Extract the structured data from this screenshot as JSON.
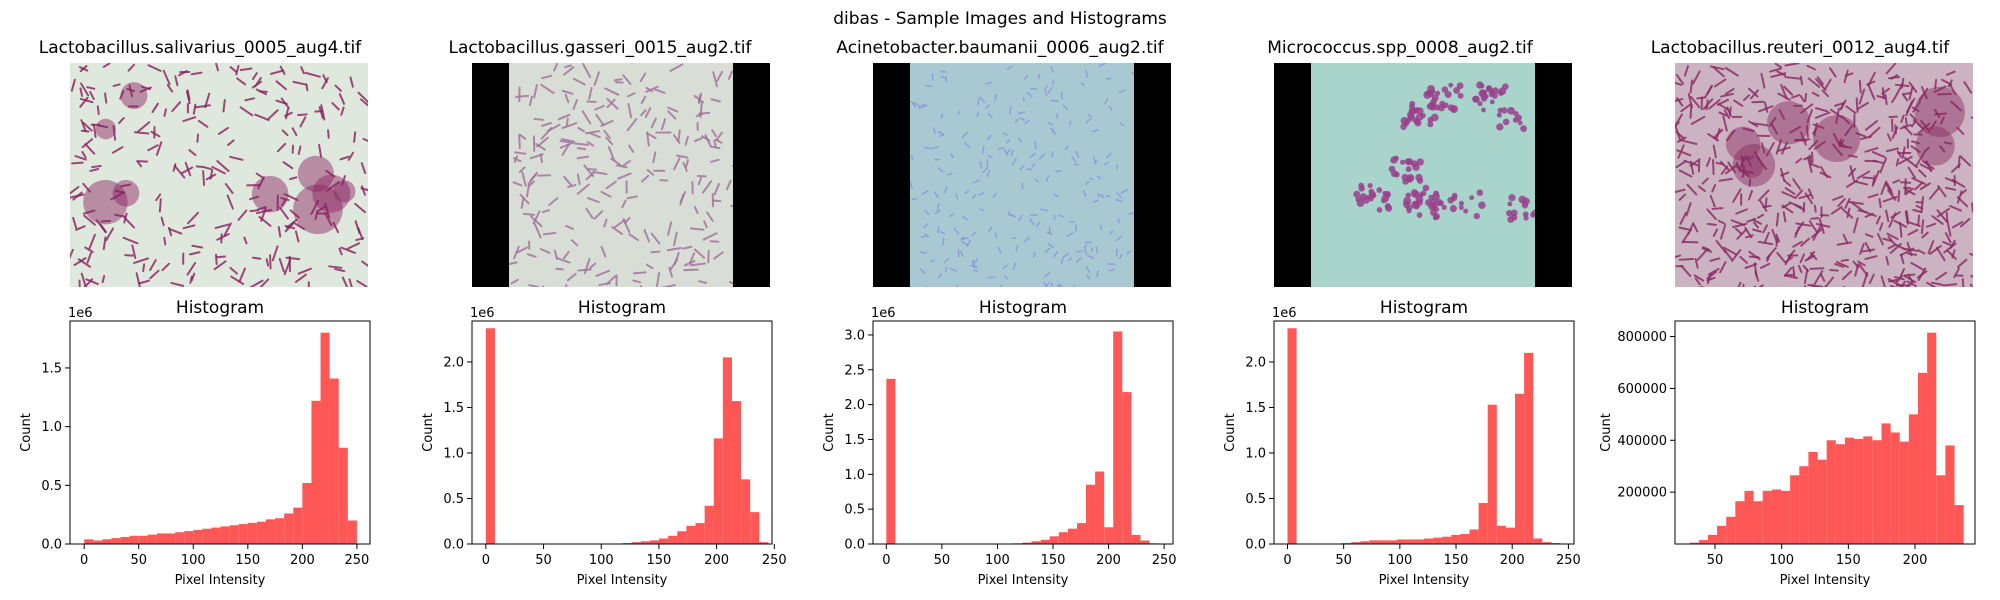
{
  "suptitle": "dibas - Sample Images and Histograms",
  "images": [
    {
      "title": "Lactobacillus.salivarius_0005_aug4.tif",
      "background": "#dfe8dc",
      "stain": "#8a1f5f",
      "letterbox": false
    },
    {
      "title": "Lactobacillus.gasseri_0015_aug2.tif",
      "background": "#d8ded6",
      "stain": "#a07098",
      "letterbox": true
    },
    {
      "title": "Acinetobacter.baumanii_0006_aug2.tif",
      "background": "#a9c9d2",
      "stain": "#8a95dc",
      "letterbox": true
    },
    {
      "title": "Micrococcus.spp_0008_aug2.tif",
      "background": "#a8d4cc",
      "stain": "#9a3f8c",
      "letterbox": true
    },
    {
      "title": "Lactobacillus.reuteri_0012_aug4.tif",
      "background": "#cbb3c2",
      "stain": "#8a2860",
      "letterbox": false
    }
  ],
  "chart_data": [
    {
      "type": "bar",
      "title": "Histogram",
      "xlabel": "Pixel Intensity",
      "ylabel": "Count",
      "color": "#ff4d4d",
      "bin_width": 8.33,
      "xlim": [
        -13,
        262
      ],
      "ylim": [
        0,
        1.9
      ],
      "multiplier_label": "1e6",
      "xticks": [
        0,
        50,
        100,
        150,
        200,
        250
      ],
      "yticks": [
        0.0,
        0.5,
        1.0,
        1.5
      ],
      "ytick_labels": [
        "0.0",
        "0.5",
        "1.0",
        "1.5"
      ],
      "bins": [
        [
          0,
          0.04
        ],
        [
          8.33,
          0.03
        ],
        [
          16.67,
          0.04
        ],
        [
          25,
          0.05
        ],
        [
          33.33,
          0.06
        ],
        [
          41.67,
          0.07
        ],
        [
          50,
          0.07
        ],
        [
          58.33,
          0.08
        ],
        [
          66.67,
          0.09
        ],
        [
          75,
          0.09
        ],
        [
          83.33,
          0.1
        ],
        [
          91.67,
          0.11
        ],
        [
          100,
          0.12
        ],
        [
          108.33,
          0.13
        ],
        [
          116.67,
          0.14
        ],
        [
          125,
          0.15
        ],
        [
          133.33,
          0.16
        ],
        [
          141.67,
          0.17
        ],
        [
          150,
          0.18
        ],
        [
          158.33,
          0.19
        ],
        [
          166.67,
          0.21
        ],
        [
          175,
          0.22
        ],
        [
          183.33,
          0.26
        ],
        [
          191.67,
          0.31
        ],
        [
          200,
          0.52
        ],
        [
          208.33,
          1.22
        ],
        [
          216.67,
          1.8
        ],
        [
          225,
          1.41
        ],
        [
          233.33,
          0.82
        ],
        [
          241.67,
          0.2
        ]
      ]
    },
    {
      "type": "bar",
      "title": "Histogram",
      "xlabel": "Pixel Intensity",
      "ylabel": "Count",
      "color": "#ff4d4d",
      "bin_width": 7.9,
      "xlim": [
        -12,
        248
      ],
      "ylim": [
        0,
        2.45
      ],
      "multiplier_label": "1e6",
      "xticks": [
        0,
        50,
        100,
        150,
        200,
        250
      ],
      "yticks": [
        0.0,
        0.5,
        1.0,
        1.5,
        2.0
      ],
      "ytick_labels": [
        "0.0",
        "0.5",
        "1.0",
        "1.5",
        "2.0"
      ],
      "bins": [
        [
          0,
          2.37
        ],
        [
          110.6,
          0.005
        ],
        [
          118.5,
          0.01
        ],
        [
          126.4,
          0.02
        ],
        [
          134.3,
          0.03
        ],
        [
          142.2,
          0.04
        ],
        [
          150.1,
          0.06
        ],
        [
          158,
          0.09
        ],
        [
          165.9,
          0.14
        ],
        [
          173.8,
          0.2
        ],
        [
          181.7,
          0.23
        ],
        [
          189.6,
          0.42
        ],
        [
          197.5,
          1.16
        ],
        [
          205.4,
          2.05
        ],
        [
          213.3,
          1.57
        ],
        [
          221.2,
          0.71
        ],
        [
          229.1,
          0.35
        ],
        [
          237,
          0.02
        ]
      ]
    },
    {
      "type": "bar",
      "title": "Histogram",
      "xlabel": "Pixel Intensity",
      "ylabel": "Count",
      "color": "#ff4d4d",
      "bin_width": 8.17,
      "xlim": [
        -12,
        258
      ],
      "ylim": [
        0,
        3.2
      ],
      "multiplier_label": "1e6",
      "xticks": [
        0,
        50,
        100,
        150,
        200,
        250
      ],
      "yticks": [
        0.0,
        0.5,
        1.0,
        1.5,
        2.0,
        2.5,
        3.0
      ],
      "ytick_labels": [
        "0.0",
        "0.5",
        "1.0",
        "1.5",
        "2.0",
        "2.5",
        "3.0"
      ],
      "bins": [
        [
          0,
          2.37
        ],
        [
          106.2,
          0.005
        ],
        [
          114.4,
          0.01
        ],
        [
          122.5,
          0.02
        ],
        [
          130.7,
          0.04
        ],
        [
          138.9,
          0.06
        ],
        [
          147,
          0.11
        ],
        [
          155.2,
          0.17
        ],
        [
          163.4,
          0.22
        ],
        [
          171.6,
          0.3
        ],
        [
          179.7,
          0.85
        ],
        [
          187.9,
          1.04
        ],
        [
          196.1,
          0.24
        ],
        [
          204.2,
          3.05
        ],
        [
          212.4,
          2.18
        ],
        [
          220.6,
          0.13
        ],
        [
          228.8,
          0.05
        ],
        [
          236.9,
          0.01
        ],
        [
          245.1,
          0.005
        ]
      ]
    },
    {
      "type": "bar",
      "title": "Histogram",
      "xlabel": "Pixel Intensity",
      "ylabel": "Count",
      "color": "#ff4d4d",
      "bin_width": 8.1,
      "xlim": [
        -12,
        255
      ],
      "ylim": [
        0,
        2.45
      ],
      "multiplier_label": "1e6",
      "xticks": [
        0,
        50,
        100,
        150,
        200,
        250
      ],
      "yticks": [
        0.0,
        0.5,
        1.0,
        1.5,
        2.0
      ],
      "ytick_labels": [
        "0.0",
        "0.5",
        "1.0",
        "1.5",
        "2.0"
      ],
      "bins": [
        [
          0,
          2.37
        ],
        [
          48.6,
          0.01
        ],
        [
          56.7,
          0.02
        ],
        [
          64.8,
          0.03
        ],
        [
          72.9,
          0.04
        ],
        [
          81,
          0.04
        ],
        [
          89.1,
          0.04
        ],
        [
          97.2,
          0.05
        ],
        [
          105.3,
          0.05
        ],
        [
          113.4,
          0.05
        ],
        [
          121.5,
          0.06
        ],
        [
          129.6,
          0.07
        ],
        [
          137.7,
          0.08
        ],
        [
          145.8,
          0.1
        ],
        [
          153.9,
          0.11
        ],
        [
          162,
          0.16
        ],
        [
          170.1,
          0.45
        ],
        [
          178.2,
          1.53
        ],
        [
          186.3,
          0.2
        ],
        [
          194.4,
          0.18
        ],
        [
          202.5,
          1.65
        ],
        [
          210.6,
          2.1
        ],
        [
          218.7,
          0.06
        ],
        [
          226.8,
          0.02
        ],
        [
          234.9,
          0.01
        ],
        [
          243,
          0.005
        ]
      ]
    },
    {
      "type": "bar",
      "title": "Histogram",
      "xlabel": "Pixel Intensity",
      "ylabel": "Count",
      "color": "#ff4d4d",
      "bin_width": 6.85,
      "xlim": [
        20,
        245
      ],
      "ylim": [
        0,
        860000
      ],
      "multiplier_label": "",
      "xticks": [
        50,
        100,
        150,
        200
      ],
      "yticks": [
        200000,
        400000,
        600000,
        800000
      ],
      "ytick_labels": [
        "200000",
        "400000",
        "600000",
        "800000"
      ],
      "bins": [
        [
          31,
          5000
        ],
        [
          37.85,
          15000
        ],
        [
          44.7,
          35000
        ],
        [
          51.55,
          70000
        ],
        [
          58.4,
          105000
        ],
        [
          65.25,
          165000
        ],
        [
          72.1,
          205000
        ],
        [
          78.95,
          165000
        ],
        [
          85.8,
          205000
        ],
        [
          92.65,
          210000
        ],
        [
          99.5,
          205000
        ],
        [
          106.35,
          265000
        ],
        [
          113.2,
          300000
        ],
        [
          120.05,
          355000
        ],
        [
          126.9,
          325000
        ],
        [
          133.75,
          400000
        ],
        [
          140.6,
          385000
        ],
        [
          147.45,
          410000
        ],
        [
          154.3,
          405000
        ],
        [
          161.15,
          415000
        ],
        [
          168,
          400000
        ],
        [
          174.85,
          465000
        ],
        [
          181.7,
          430000
        ],
        [
          188.55,
          395000
        ],
        [
          195.4,
          500000
        ],
        [
          202.25,
          660000
        ],
        [
          209.1,
          815000
        ],
        [
          215.95,
          265000
        ],
        [
          222.8,
          380000
        ],
        [
          229.65,
          150000
        ]
      ]
    }
  ]
}
